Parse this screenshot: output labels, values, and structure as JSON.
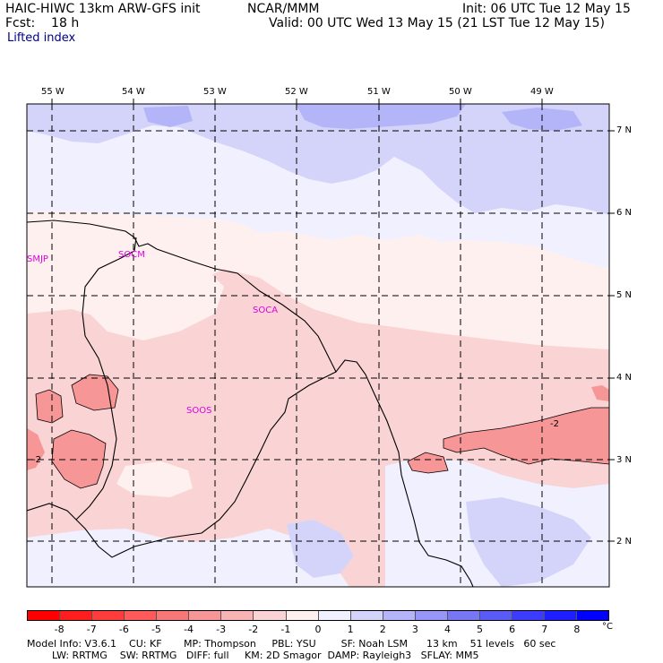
{
  "header": {
    "model": "HAIC-HIWC 13km ARW-GFS init",
    "org": "NCAR/MMM",
    "init": "Init: 06 UTC Tue 12 May 15",
    "fcst": "Fcst:    18 h",
    "valid": "Valid: 00 UTC Wed 13 May 15 (21 LST Tue 12 May 15)",
    "field": "Lifted index"
  },
  "longitude_labels": [
    "55 W",
    "54 W",
    "53 W",
    "52 W",
    "51 W",
    "50 W",
    "49 W"
  ],
  "latitude_labels": [
    "7 N",
    "6 N",
    "5 N",
    "4 N",
    "3 N",
    "2 N"
  ],
  "stations": [
    "SMJP",
    "SOCM",
    "SOCA",
    "SOOS"
  ],
  "contour_labels": [
    "-2",
    "-2"
  ],
  "colorbar": {
    "ticks": [
      "-8",
      "-7",
      "-6",
      "-5",
      "-4",
      "-3",
      "-2",
      "-1",
      "0",
      "1",
      "2",
      "3",
      "4",
      "5",
      "6",
      "7",
      "8"
    ],
    "unit": "°C",
    "colors": [
      "#ff0000",
      "#ff1e1e",
      "#ff3c3c",
      "#ff5a5a",
      "#f77777",
      "#f79696",
      "#f8b4b4",
      "#fad4d4",
      "#fff0f0",
      "#f0f0ff",
      "#d4d4fa",
      "#b4b4f8",
      "#9696f7",
      "#7777f4",
      "#5a5af7",
      "#3c3cff",
      "#1e1eff",
      "#0000ff"
    ]
  },
  "footer": {
    "line1": "Model Info: V3.6.1    CU: KF       MP: Thompson     PBL: YSU        SF: Noah LSM      13 km    51 levels   60 sec",
    "line2": "        LW: RRTMG    SW: RRTMG   DIFF: full     KM: 2D Smagor  DAMP: Rayleigh3   SFLAY: MM5"
  }
}
